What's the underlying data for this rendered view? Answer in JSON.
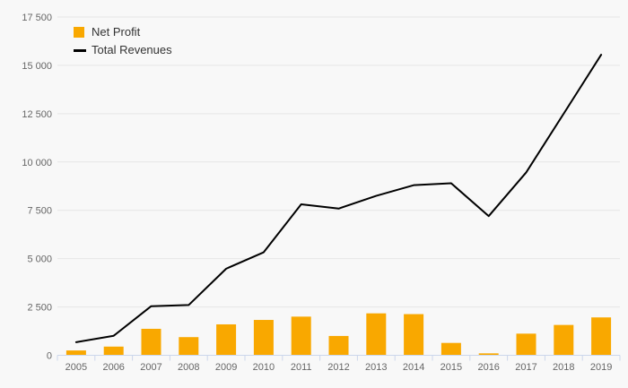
{
  "chart_data": {
    "type": "bar",
    "combo": "bar+line",
    "title": "",
    "categories": [
      "2005",
      "2006",
      "2007",
      "2008",
      "2009",
      "2010",
      "2011",
      "2012",
      "2013",
      "2014",
      "2015",
      "2016",
      "2017",
      "2018",
      "2019"
    ],
    "series": [
      {
        "name": "Net Profit",
        "type": "bar",
        "color": "#F9A800",
        "values": [
          250,
          450,
          1370,
          940,
          1600,
          1830,
          2000,
          1000,
          2170,
          2130,
          640,
          100,
          1120,
          1570,
          1960
        ]
      },
      {
        "name": "Total Revenues",
        "type": "line",
        "color": "#000000",
        "values": [
          680,
          1010,
          2540,
          2600,
          4480,
          5330,
          7810,
          7590,
          8250,
          8800,
          8900,
          7200,
          9460,
          12500,
          15550
        ]
      }
    ],
    "xlabel": "",
    "ylabel": "",
    "ylim": [
      0,
      17500
    ],
    "ytick_interval": 2500,
    "yticks": [
      0,
      2500,
      5000,
      7500,
      10000,
      12500,
      15000,
      17500
    ],
    "ytick_labels": [
      "0",
      "2 500",
      "5 000",
      "7 500",
      "10 000",
      "12 500",
      "15 000",
      "17 500"
    ],
    "grid": "horizontal",
    "legend_position": "top-left"
  },
  "legend": {
    "items": [
      {
        "label": "Net Profit"
      },
      {
        "label": "Total Revenues"
      }
    ]
  },
  "colors": {
    "background": "#f8f8f8",
    "gridline": "#e6e6e6",
    "axis_line": "#ccd6eb",
    "axis_label": "#666666",
    "legend_text": "#333333",
    "bar": "#F9A800",
    "line": "#000000"
  }
}
